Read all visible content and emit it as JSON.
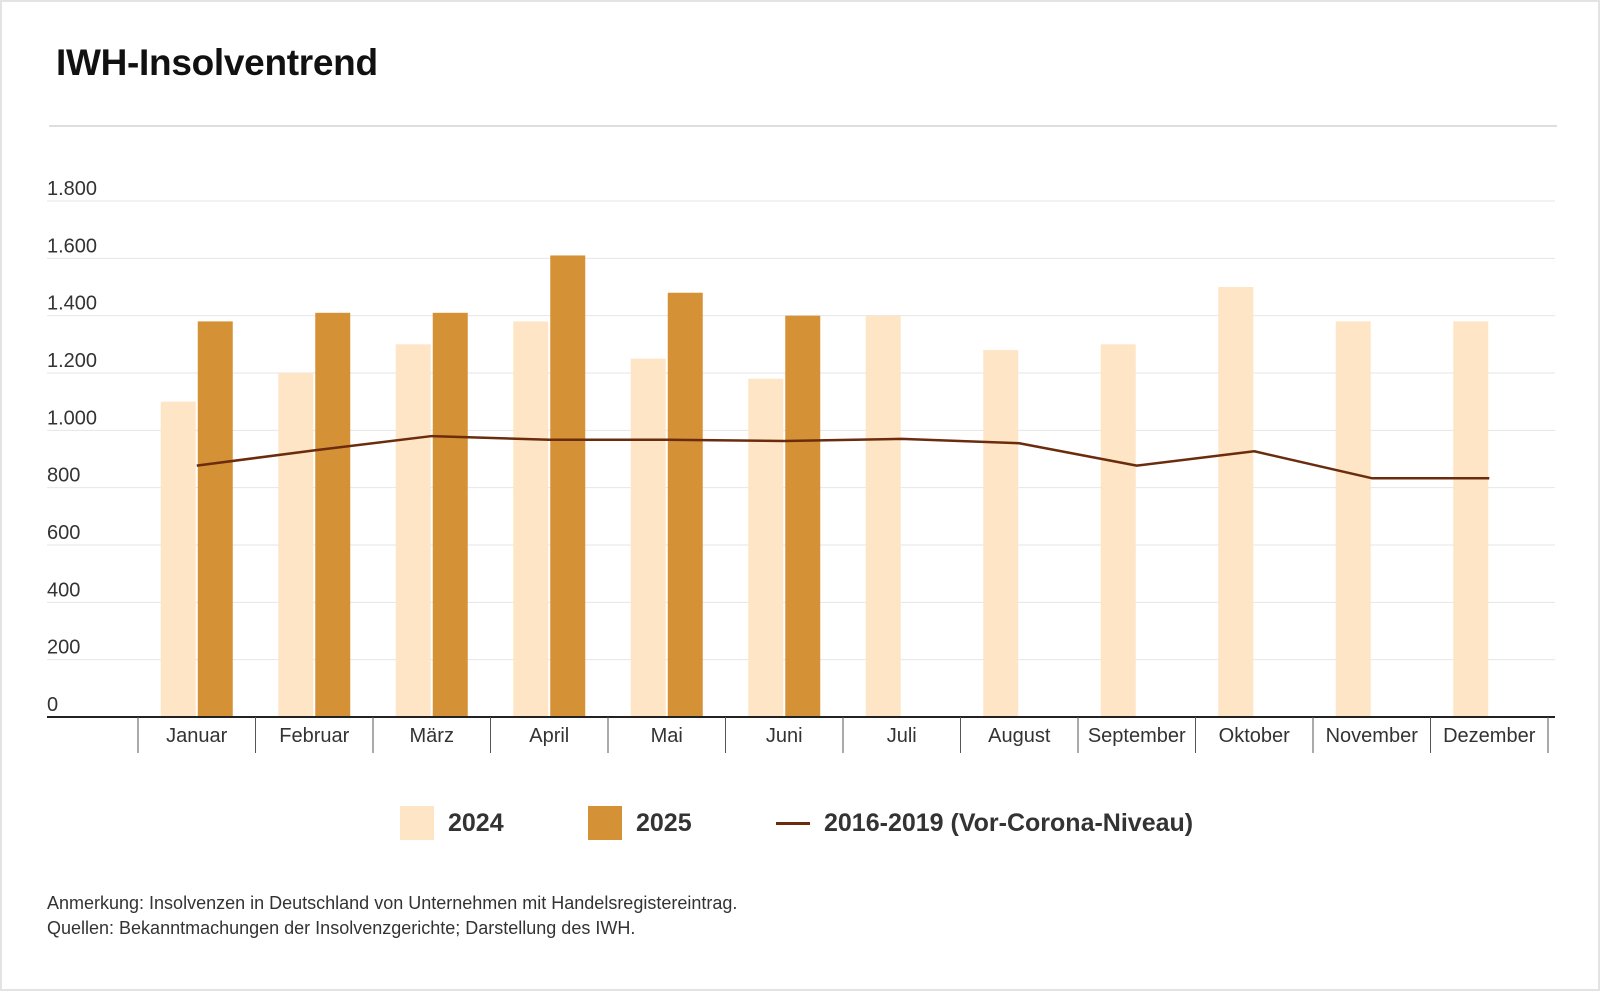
{
  "colors": {
    "series_2024": "#fde5c6",
    "series_2025": "#d59135",
    "series_line": "#6b2c0e",
    "grid": "#e6e6e6",
    "axis": "#222222"
  },
  "chart_data": {
    "type": "bar",
    "title": "IWH-Insolventrend",
    "categories": [
      "Januar",
      "Februar",
      "März",
      "April",
      "Mai",
      "Juni",
      "Juli",
      "August",
      "September",
      "Oktober",
      "November",
      "Dezember"
    ],
    "series": [
      {
        "name": "2024",
        "type": "bar",
        "values": [
          1100,
          1200,
          1300,
          1380,
          1250,
          1180,
          1400,
          1280,
          1300,
          1500,
          1380,
          1380
        ]
      },
      {
        "name": "2025",
        "type": "bar",
        "values": [
          1380,
          1410,
          1410,
          1610,
          1480,
          1400,
          null,
          null,
          null,
          null,
          null,
          null
        ]
      },
      {
        "name": "2016-2019 (Vor-Corona-Niveau)",
        "type": "line",
        "values": [
          877,
          930,
          980,
          967,
          967,
          963,
          970,
          955,
          877,
          927,
          833,
          833
        ]
      }
    ],
    "ylim": [
      0,
      1800
    ],
    "yticks": [
      0,
      200,
      400,
      600,
      800,
      1000,
      1200,
      1400,
      1600,
      1800
    ],
    "ytick_labels": [
      "0",
      "200",
      "400",
      "600",
      "800",
      "1.000",
      "1.200",
      "1.400",
      "1.600",
      "1.800"
    ],
    "grid": true,
    "legend_position": "bottom-center"
  },
  "notes": {
    "annotation": "Anmerkung: Insolvenzen in Deutschland von Unternehmen mit Handelsregistereintrag.",
    "sources": "Quellen: Bekanntmachungen der Insolvenzgerichte; Darstellung des IWH."
  }
}
